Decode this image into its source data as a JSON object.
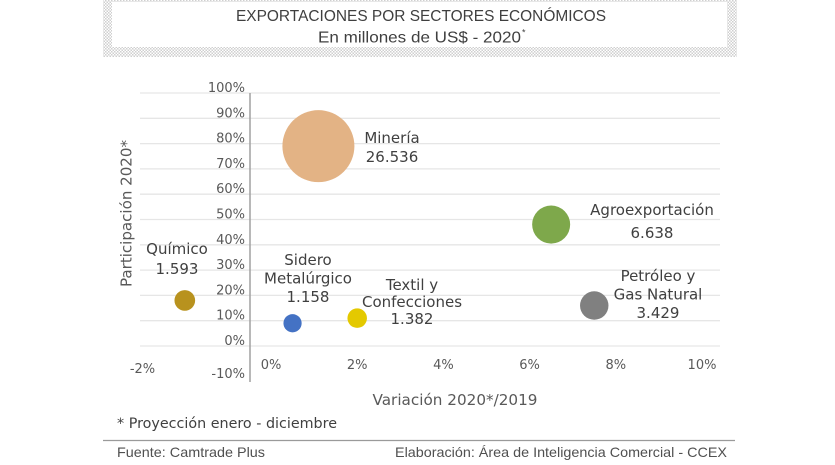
{
  "chart_data": {
    "type": "scatter",
    "variant": "bubble",
    "title": "EXPORTACIONES POR SECTORES ECONÓMICOS",
    "subtitle": "En millones de US$ - 2020",
    "subtitle_mark": "*",
    "xlabel": "Variación 2020*/2019",
    "ylabel": "Participación 2020*",
    "xlim": [
      -3,
      10.5
    ],
    "ylim": [
      -10,
      100
    ],
    "grid": "horizontal",
    "x_ticks": [
      {
        "value": -2,
        "label": "-2%"
      },
      {
        "value": 0,
        "label": "0%"
      },
      {
        "value": 2,
        "label": "2%"
      },
      {
        "value": 4,
        "label": "4%"
      },
      {
        "value": 6,
        "label": "6%"
      },
      {
        "value": 8,
        "label": "8%"
      },
      {
        "value": 10,
        "label": "10%"
      }
    ],
    "y_ticks": [
      {
        "value": -10,
        "label": "-10%"
      },
      {
        "value": 0,
        "label": "0%"
      },
      {
        "value": 10,
        "label": "10%"
      },
      {
        "value": 20,
        "label": "20%"
      },
      {
        "value": 30,
        "label": "30%"
      },
      {
        "value": 40,
        "label": "40%"
      },
      {
        "value": 50,
        "label": "50%"
      },
      {
        "value": 60,
        "label": "60%"
      },
      {
        "value": 70,
        "label": "70%"
      },
      {
        "value": 80,
        "label": "80%"
      },
      {
        "value": 90,
        "label": "90%"
      },
      {
        "value": 100,
        "label": "100%"
      }
    ],
    "points": [
      {
        "name_lines": [
          "Minería"
        ],
        "value_label": "26.536",
        "x": 1.1,
        "y": 79,
        "size": 26536,
        "color": "#E3B385"
      },
      {
        "name_lines": [
          "Agroexportación"
        ],
        "value_label": "6.638",
        "x": 6.5,
        "y": 48,
        "size": 6638,
        "color": "#7EA84B"
      },
      {
        "name_lines": [
          "Petróleo y",
          "Gas Natural"
        ],
        "value_label": "3.429",
        "x": 7.5,
        "y": 16,
        "size": 3429,
        "color": "#808080"
      },
      {
        "name_lines": [
          "Químico"
        ],
        "value_label": "1.593",
        "x": -2.0,
        "y": 18,
        "size": 1593,
        "color": "#B8921E"
      },
      {
        "name_lines": [
          "Sidero",
          "Metalúrgico"
        ],
        "value_label": "1.158",
        "x": 0.5,
        "y": 9,
        "size": 1158,
        "color": "#4472C4"
      },
      {
        "name_lines": [
          "Textil y",
          "Confecciones"
        ],
        "value_label": "1.382",
        "x": 2.0,
        "y": 11,
        "size": 1382,
        "color": "#E4C900"
      }
    ]
  },
  "footnote": "* Proyección enero - diciembre",
  "footer": {
    "source": "Fuente: Camtrade Plus",
    "credit": "Elaboración: Área de Inteligencia Comercial - CCEX"
  }
}
